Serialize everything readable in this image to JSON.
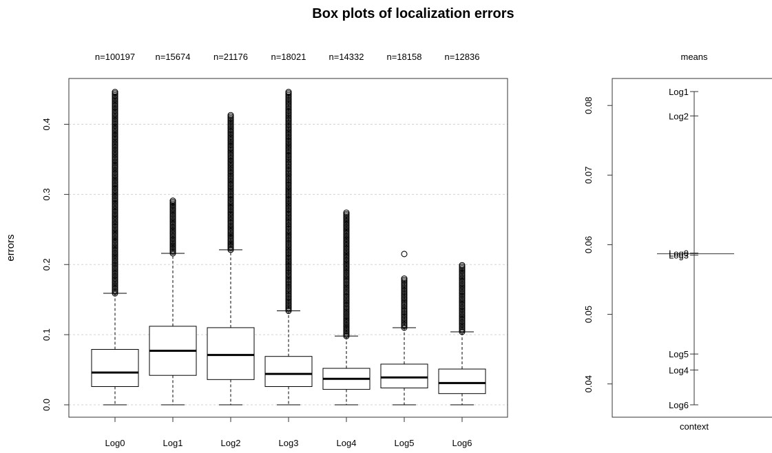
{
  "figure": {
    "title": "Box plots of localization errors"
  },
  "chart_data": [
    {
      "type": "box",
      "title": "",
      "ylabel": "errors",
      "xlabel": "",
      "ylim": [
        0,
        0.45
      ],
      "yticks": [
        0.0,
        0.1,
        0.2,
        0.3,
        0.4
      ],
      "ytick_labels": [
        "0.0",
        "0.1",
        "0.2",
        "0.3",
        "0.4"
      ],
      "grid": true,
      "categories": [
        "Log0",
        "Log1",
        "Log2",
        "Log3",
        "Log4",
        "Log5",
        "Log6"
      ],
      "counts": [
        "n=100197",
        "n=15674",
        "n=21176",
        "n=18021",
        "n=14332",
        "n=18158",
        "n=12836"
      ],
      "boxes": [
        {
          "name": "Log0",
          "min": 0.0,
          "q1": 0.026,
          "median": 0.046,
          "q3": 0.079,
          "whisker_high": 0.159,
          "outliers_range": [
            0.159,
            0.446
          ]
        },
        {
          "name": "Log1",
          "min": 0.0,
          "q1": 0.042,
          "median": 0.077,
          "q3": 0.112,
          "whisker_high": 0.216,
          "outliers_range": [
            0.216,
            0.291
          ]
        },
        {
          "name": "Log2",
          "min": 0.0,
          "q1": 0.036,
          "median": 0.071,
          "q3": 0.11,
          "whisker_high": 0.221,
          "outliers_range": [
            0.221,
            0.413
          ]
        },
        {
          "name": "Log3",
          "min": 0.0,
          "q1": 0.026,
          "median": 0.044,
          "q3": 0.069,
          "whisker_high": 0.134,
          "outliers_range": [
            0.134,
            0.446
          ]
        },
        {
          "name": "Log4",
          "min": 0.0,
          "q1": 0.022,
          "median": 0.037,
          "q3": 0.052,
          "whisker_high": 0.098,
          "outliers_range": [
            0.098,
            0.274
          ]
        },
        {
          "name": "Log5",
          "min": 0.0,
          "q1": 0.024,
          "median": 0.039,
          "q3": 0.058,
          "whisker_high": 0.11,
          "outliers_range": [
            0.11,
            0.18
          ],
          "extra_outliers": [
            0.215
          ]
        },
        {
          "name": "Log6",
          "min": 0.0,
          "q1": 0.016,
          "median": 0.031,
          "q3": 0.051,
          "whisker_high": 0.104,
          "outliers_range": [
            0.104,
            0.199
          ]
        }
      ]
    },
    {
      "type": "scatter",
      "title": "means",
      "xlabel": "context",
      "ylabel": "",
      "ylim": [
        0.0355,
        0.0825
      ],
      "yticks": [
        0.04,
        0.05,
        0.06,
        0.07,
        0.08
      ],
      "ytick_labels": [
        "0.04",
        "0.05",
        "0.06",
        "0.07",
        "0.08"
      ],
      "grand_mean": 0.0587,
      "points": [
        {
          "label": "Log1",
          "value": 0.082
        },
        {
          "label": "Log2",
          "value": 0.0785
        },
        {
          "label": "Log0",
          "value": 0.0588
        },
        {
          "label": "Log3",
          "value": 0.0585
        },
        {
          "label": "Log5",
          "value": 0.0443
        },
        {
          "label": "Log4",
          "value": 0.042
        },
        {
          "label": "Log6",
          "value": 0.037
        }
      ]
    }
  ]
}
